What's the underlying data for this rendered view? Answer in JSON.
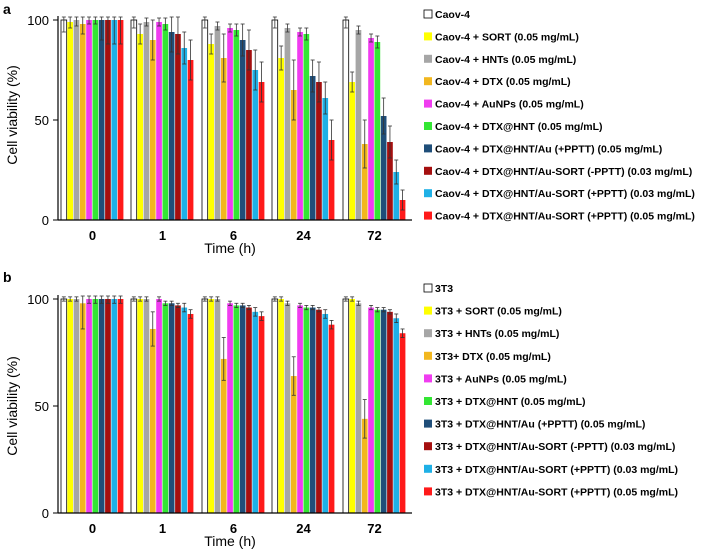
{
  "colors": [
    "#ffffff",
    "#ffff00",
    "#a6a6a6",
    "#f2b71f",
    "#f03cf0",
    "#33e633",
    "#1f4e79",
    "#a50f0f",
    "#1fb0e6",
    "#ff1a1a"
  ],
  "chart_data": [
    {
      "panel_label": "a",
      "type": "bar",
      "categories": [
        "0",
        "1",
        "6",
        "24",
        "72"
      ],
      "xlabel": "Time (h)",
      "ylabel": "Cell viability (%)",
      "ylim": [
        0,
        100
      ],
      "yticks": [
        0,
        50,
        100
      ],
      "legend_position": "right",
      "series": [
        {
          "name": "Caov-4",
          "values": [
            100,
            100,
            100,
            100,
            100
          ],
          "errors": [
            6,
            4,
            4,
            4,
            4
          ]
        },
        {
          "name": "Caov-4 + SORT (0.05 mg/mL)",
          "values": [
            99,
            93,
            88,
            81,
            69
          ],
          "errors": [
            3,
            5,
            5,
            6,
            5
          ]
        },
        {
          "name": "Caov-4 + HNTs (0.05 mg/mL)",
          "values": [
            100,
            99,
            97,
            96,
            95
          ],
          "errors": [
            3,
            2,
            2,
            2,
            2
          ]
        },
        {
          "name": "Caov-4 + DTX (0.05 mg/mL)",
          "values": [
            98,
            90,
            81,
            65,
            38
          ],
          "errors": [
            5,
            10,
            12,
            15,
            12
          ]
        },
        {
          "name": "Caov-4 + AuNPs (0.05 mg/mL)",
          "values": [
            100,
            99,
            96,
            94,
            91
          ],
          "errors": [
            2,
            2,
            2,
            2,
            2
          ]
        },
        {
          "name": "Caov-4 + DTX@HNT (0.05 mg/mL)",
          "values": [
            100,
            98,
            95,
            93,
            89
          ],
          "errors": [
            2,
            3,
            3,
            3,
            3
          ]
        },
        {
          "name": "Caov-4 + DTX@HNT/Au (+PPTT) (0.05 mg/mL)",
          "values": [
            100,
            94,
            90,
            72,
            52
          ],
          "errors": [
            10,
            10,
            8,
            8,
            9
          ]
        },
        {
          "name": "Caov-4 + DTX@HNT/Au-SORT (-PPTT) (0.03 mg/mL)",
          "values": [
            100,
            93,
            85,
            69,
            39
          ],
          "errors": [
            12,
            10,
            10,
            10,
            8
          ]
        },
        {
          "name": "Caov-4 + DTX@HNT/Au-SORT (+PPTT) (0.03 mg/mL)",
          "values": [
            100,
            86,
            75,
            61,
            24
          ],
          "errors": [
            12,
            8,
            10,
            8,
            6
          ]
        },
        {
          "name": "Caov-4 + DTX@HNT/Au-SORT (+PPTT) (0.05 mg/mL)",
          "values": [
            100,
            80,
            69,
            40,
            10
          ],
          "errors": [
            12,
            10,
            10,
            10,
            5
          ]
        }
      ]
    },
    {
      "panel_label": "b",
      "type": "bar",
      "categories": [
        "0",
        "1",
        "6",
        "24",
        "72"
      ],
      "xlabel": "Time (h)",
      "ylabel": "Cell viability (%)",
      "ylim": [
        0,
        100
      ],
      "yticks": [
        0,
        50,
        100
      ],
      "legend_position": "right",
      "series": [
        {
          "name": "3T3",
          "values": [
            100,
            100,
            100,
            100,
            100
          ],
          "errors": [
            1,
            1,
            1,
            1,
            1
          ]
        },
        {
          "name": "3T3 + SORT (0.05 mg/mL)",
          "values": [
            100,
            100,
            100,
            100,
            100
          ],
          "errors": [
            1,
            1,
            1,
            1,
            1
          ]
        },
        {
          "name": "3T3 + HNTs (0.05 mg/mL)",
          "values": [
            100,
            100,
            100,
            98,
            98
          ],
          "errors": [
            1,
            1,
            1,
            1,
            1
          ]
        },
        {
          "name": "3T3+ DTX (0.05 mg/mL)",
          "values": [
            98,
            86,
            72,
            64,
            44
          ],
          "errors": [
            12,
            8,
            10,
            9,
            9
          ]
        },
        {
          "name": "3T3 + AuNPs (0.05 mg/mL)",
          "values": [
            100,
            100,
            98,
            97,
            96
          ],
          "errors": [
            2,
            1,
            1,
            1,
            1
          ]
        },
        {
          "name": "3T3 + DTX@HNT (0.05 mg/mL)",
          "values": [
            100,
            98,
            97,
            96,
            95
          ],
          "errors": [
            2,
            1,
            1,
            1,
            1
          ]
        },
        {
          "name": "3T3 + DTX@HNT/Au (+PPTT) (0.05 mg/mL)",
          "values": [
            100,
            98,
            97,
            96,
            95
          ],
          "errors": [
            2,
            1,
            1,
            1,
            1
          ]
        },
        {
          "name": "3T3 + DTX@HNT/Au-SORT (-PPTT) (0.03 mg/mL)",
          "values": [
            100,
            97,
            96,
            95,
            94
          ],
          "errors": [
            2,
            1,
            1,
            1,
            1
          ]
        },
        {
          "name": "3T3 + DTX@HNT/Au-SORT (+PPTT) (0.03 mg/mL)",
          "values": [
            100,
            96,
            94,
            93,
            91
          ],
          "errors": [
            2,
            2,
            2,
            2,
            2
          ]
        },
        {
          "name": "3T3 + DTX@HNT/Au-SORT (+PPTT) (0.05 mg/mL)",
          "values": [
            100,
            93,
            92,
            88,
            84
          ],
          "errors": [
            2,
            2,
            2,
            2,
            2
          ]
        }
      ]
    }
  ]
}
